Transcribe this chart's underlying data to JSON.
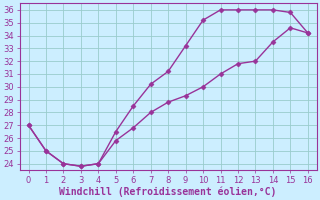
{
  "curve1_x": [
    0,
    1,
    2,
    3,
    4,
    5,
    6,
    7,
    8,
    9,
    10,
    11,
    12,
    13,
    14,
    15,
    16
  ],
  "curve1_y": [
    27,
    25.0,
    24.0,
    23.8,
    24.0,
    26.5,
    28.5,
    30.2,
    31.2,
    33.2,
    35.2,
    36.0,
    36.0,
    36.0,
    36.0,
    35.8,
    34.2
  ],
  "curve2_x": [
    0,
    1,
    2,
    3,
    4,
    5,
    6,
    7,
    8,
    9,
    10,
    11,
    12,
    13,
    14,
    15,
    16
  ],
  "curve2_y": [
    27,
    25.0,
    24.0,
    23.8,
    24.0,
    25.8,
    26.8,
    28.0,
    28.8,
    29.3,
    30.0,
    31.0,
    31.8,
    32.0,
    33.5,
    34.6,
    34.2
  ],
  "line_color": "#993399",
  "bg_color": "#cceeff",
  "grid_color": "#99cccc",
  "xlabel": "Windchill (Refroidissement éolien,°C)",
  "xlabel_color": "#993399",
  "xlim": [
    -0.5,
    16.5
  ],
  "ylim": [
    23.5,
    36.5
  ],
  "xticks": [
    0,
    1,
    2,
    3,
    4,
    5,
    6,
    7,
    8,
    9,
    10,
    11,
    12,
    13,
    14,
    15,
    16
  ],
  "yticks": [
    24,
    25,
    26,
    27,
    28,
    29,
    30,
    31,
    32,
    33,
    34,
    35,
    36
  ],
  "marker": "D",
  "marker_size": 2.5,
  "line_width": 1.0,
  "tick_fontsize": 6,
  "xlabel_fontsize": 7
}
